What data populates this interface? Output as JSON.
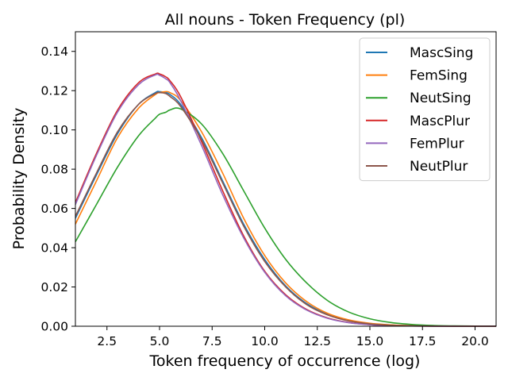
{
  "chart_data": {
    "type": "line",
    "title": "All nouns - Token Frequency (pl)",
    "xlabel": "Token frequency of occurrence (log)",
    "ylabel": "Probability Density",
    "xlim": [
      1,
      21
    ],
    "ylim": [
      0,
      0.15
    ],
    "x_ticks": [
      2.5,
      5.0,
      7.5,
      10.0,
      12.5,
      15.0,
      17.5,
      20.0
    ],
    "x_tick_labels": [
      "2.5",
      "5.0",
      "7.5",
      "10.0",
      "12.5",
      "15.0",
      "17.5",
      "20.0"
    ],
    "y_ticks": [
      0.0,
      0.02,
      0.04,
      0.06,
      0.08,
      0.1,
      0.12,
      0.14
    ],
    "y_tick_labels": [
      "0.00",
      "0.02",
      "0.04",
      "0.06",
      "0.08",
      "0.10",
      "0.12",
      "0.14"
    ],
    "grid": false,
    "legend_position": "top-right",
    "x": [
      1,
      2,
      3,
      4,
      4.8,
      5,
      5.3,
      5.5,
      6,
      7,
      8,
      9,
      10,
      11,
      12,
      13,
      14,
      15,
      16,
      17,
      18,
      19,
      20,
      21
    ],
    "series": [
      {
        "name": "MascSing",
        "color": "#1f77b4",
        "values": [
          0.055,
          0.077,
          0.098,
          0.113,
          0.119,
          0.1195,
          0.119,
          0.118,
          0.113,
          0.096,
          0.074,
          0.052,
          0.034,
          0.0205,
          0.0115,
          0.006,
          0.003,
          0.0014,
          0.0006,
          0.00025,
          0.0001,
          4e-05,
          1e-05,
          0.0
        ]
      },
      {
        "name": "FemSing",
        "color": "#ff7f0e",
        "values": [
          0.052,
          0.074,
          0.096,
          0.111,
          0.118,
          0.119,
          0.1195,
          0.119,
          0.115,
          0.099,
          0.078,
          0.055,
          0.036,
          0.022,
          0.0125,
          0.0065,
          0.0032,
          0.0015,
          0.0007,
          0.0003,
          0.0001,
          4e-05,
          1e-05,
          0.0
        ]
      },
      {
        "name": "NeutSing",
        "color": "#2ca02c",
        "values": [
          0.043,
          0.062,
          0.081,
          0.097,
          0.106,
          0.108,
          0.109,
          0.1102,
          0.1107,
          0.103,
          0.088,
          0.069,
          0.05,
          0.034,
          0.022,
          0.013,
          0.0072,
          0.0038,
          0.0019,
          0.0009,
          0.0004,
          0.00017,
          7e-05,
          3e-05
        ]
      },
      {
        "name": "MascPlur",
        "color": "#d62728",
        "values": [
          0.063,
          0.088,
          0.11,
          0.124,
          0.1285,
          0.1285,
          0.127,
          0.125,
          0.117,
          0.094,
          0.069,
          0.046,
          0.028,
          0.016,
          0.0085,
          0.0042,
          0.0019,
          0.0008,
          0.0003,
          0.0001,
          4e-05,
          1e-05,
          0.0,
          0.0
        ]
      },
      {
        "name": "FemPlur",
        "color": "#9467bd",
        "values": [
          0.062,
          0.087,
          0.109,
          0.123,
          0.128,
          0.1278,
          0.126,
          0.124,
          0.115,
          0.092,
          0.067,
          0.045,
          0.0275,
          0.0155,
          0.0082,
          0.004,
          0.0018,
          0.0008,
          0.0003,
          0.0001,
          4e-05,
          1e-05,
          0.0,
          0.0
        ]
      },
      {
        "name": "NeutPlur",
        "color": "#8c564b",
        "values": [
          0.056,
          0.078,
          0.099,
          0.113,
          0.1185,
          0.119,
          0.1185,
          0.117,
          0.112,
          0.095,
          0.073,
          0.051,
          0.033,
          0.02,
          0.011,
          0.0057,
          0.0027,
          0.0012,
          0.0005,
          0.0002,
          8e-05,
          3e-05,
          1e-05,
          0.0
        ]
      }
    ]
  }
}
